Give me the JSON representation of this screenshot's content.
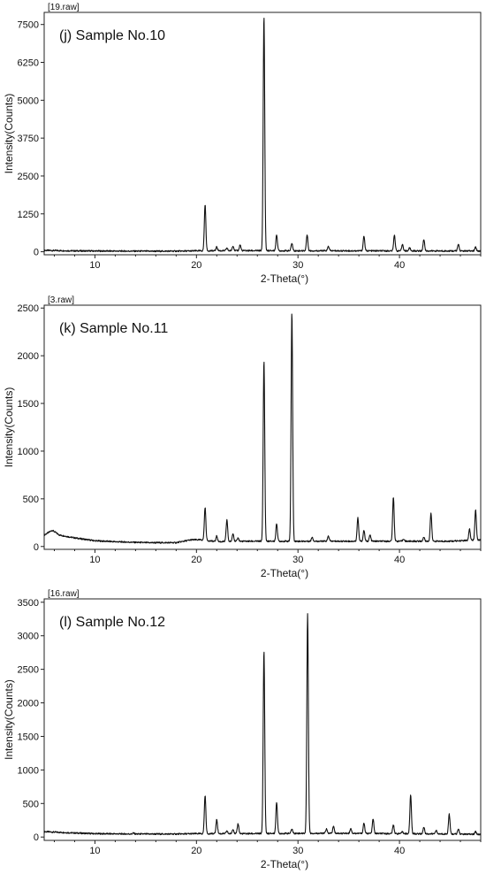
{
  "chart_data": [
    {
      "type": "line",
      "raw_label": "[19.raw]",
      "title": "(j) Sample No.10",
      "xlabel": "2-Theta(°)",
      "ylabel": "Intensity(Counts)",
      "xlim": [
        5,
        48
      ],
      "ylim": [
        -100,
        7900
      ],
      "xticks": [
        10,
        20,
        30,
        40
      ],
      "yticks": [
        0,
        1250,
        2500,
        3750,
        5000,
        6250,
        7500
      ],
      "baseline": [
        [
          5,
          45
        ],
        [
          8,
          28
        ],
        [
          12,
          22
        ],
        [
          16,
          18
        ],
        [
          19,
          22
        ],
        [
          20,
          30
        ],
        [
          25,
          35
        ],
        [
          30,
          32
        ],
        [
          35,
          30
        ],
        [
          40,
          28
        ],
        [
          45,
          25
        ],
        [
          48,
          25
        ]
      ],
      "peaks": [
        {
          "x": 20.85,
          "y": 1560
        },
        {
          "x": 22.0,
          "y": 160
        },
        {
          "x": 23.0,
          "y": 120
        },
        {
          "x": 23.6,
          "y": 200
        },
        {
          "x": 24.3,
          "y": 230
        },
        {
          "x": 26.65,
          "y": 7780
        },
        {
          "x": 27.9,
          "y": 560
        },
        {
          "x": 29.4,
          "y": 280
        },
        {
          "x": 30.9,
          "y": 560
        },
        {
          "x": 33.0,
          "y": 180
        },
        {
          "x": 36.5,
          "y": 520
        },
        {
          "x": 39.5,
          "y": 560
        },
        {
          "x": 40.3,
          "y": 240
        },
        {
          "x": 41.0,
          "y": 130
        },
        {
          "x": 42.4,
          "y": 410
        },
        {
          "x": 45.8,
          "y": 250
        },
        {
          "x": 47.5,
          "y": 150
        }
      ]
    },
    {
      "type": "line",
      "raw_label": "[3.raw]",
      "title": "(k) Sample No.11",
      "xlabel": "2-Theta(°)",
      "ylabel": "Intensity(Counts)",
      "xlim": [
        5,
        48
      ],
      "ylim": [
        -30,
        2530
      ],
      "xticks": [
        10,
        20,
        30,
        40
      ],
      "yticks": [
        0,
        500,
        1000,
        1500,
        2000,
        2500
      ],
      "baseline": [
        [
          5,
          120
        ],
        [
          5.8,
          170
        ],
        [
          6.5,
          120
        ],
        [
          8,
          90
        ],
        [
          10,
          60
        ],
        [
          12,
          50
        ],
        [
          15,
          40
        ],
        [
          18,
          40
        ],
        [
          19.5,
          70
        ],
        [
          20.5,
          70
        ],
        [
          22,
          50
        ],
        [
          25,
          55
        ],
        [
          30,
          55
        ],
        [
          35,
          55
        ],
        [
          40,
          55
        ],
        [
          45,
          55
        ],
        [
          48,
          70
        ]
      ],
      "peaks": [
        {
          "x": 20.85,
          "y": 410
        },
        {
          "x": 22.0,
          "y": 110
        },
        {
          "x": 23.0,
          "y": 280
        },
        {
          "x": 23.6,
          "y": 140
        },
        {
          "x": 24.1,
          "y": 90
        },
        {
          "x": 26.65,
          "y": 1950
        },
        {
          "x": 27.9,
          "y": 240
        },
        {
          "x": 29.4,
          "y": 2460
        },
        {
          "x": 31.4,
          "y": 100
        },
        {
          "x": 33.0,
          "y": 110
        },
        {
          "x": 35.9,
          "y": 300
        },
        {
          "x": 36.5,
          "y": 170
        },
        {
          "x": 37.1,
          "y": 120
        },
        {
          "x": 39.4,
          "y": 520
        },
        {
          "x": 40.4,
          "y": 80
        },
        {
          "x": 42.4,
          "y": 100
        },
        {
          "x": 43.1,
          "y": 350
        },
        {
          "x": 46.9,
          "y": 180
        },
        {
          "x": 47.5,
          "y": 380
        }
      ]
    },
    {
      "type": "line",
      "raw_label": "[16.raw]",
      "title": "(l) Sample No.12",
      "xlabel": "2-Theta(°)",
      "ylabel": "Intensity(Counts)",
      "xlim": [
        5,
        48
      ],
      "ylim": [
        -50,
        3550
      ],
      "xticks": [
        10,
        20,
        30,
        40
      ],
      "yticks": [
        0,
        500,
        1000,
        1500,
        2000,
        2500,
        3000,
        3500
      ],
      "baseline": [
        [
          5,
          80
        ],
        [
          8,
          60
        ],
        [
          10,
          50
        ],
        [
          14,
          45
        ],
        [
          18,
          45
        ],
        [
          20,
          50
        ],
        [
          25,
          50
        ],
        [
          30,
          55
        ],
        [
          35,
          55
        ],
        [
          40,
          50
        ],
        [
          45,
          45
        ],
        [
          48,
          40
        ]
      ],
      "peaks": [
        {
          "x": 13.8,
          "y": 60
        },
        {
          "x": 20.85,
          "y": 620
        },
        {
          "x": 22.0,
          "y": 260
        },
        {
          "x": 23.0,
          "y": 90
        },
        {
          "x": 23.6,
          "y": 120
        },
        {
          "x": 24.1,
          "y": 200
        },
        {
          "x": 26.65,
          "y": 2780
        },
        {
          "x": 27.9,
          "y": 520
        },
        {
          "x": 29.4,
          "y": 120
        },
        {
          "x": 30.95,
          "y": 3320
        },
        {
          "x": 32.8,
          "y": 120
        },
        {
          "x": 33.5,
          "y": 160
        },
        {
          "x": 35.2,
          "y": 130
        },
        {
          "x": 36.5,
          "y": 210
        },
        {
          "x": 37.4,
          "y": 270
        },
        {
          "x": 39.4,
          "y": 180
        },
        {
          "x": 40.3,
          "y": 80
        },
        {
          "x": 41.1,
          "y": 630
        },
        {
          "x": 42.4,
          "y": 150
        },
        {
          "x": 43.6,
          "y": 100
        },
        {
          "x": 44.9,
          "y": 340
        },
        {
          "x": 45.8,
          "y": 120
        },
        {
          "x": 47.5,
          "y": 80
        }
      ]
    }
  ]
}
